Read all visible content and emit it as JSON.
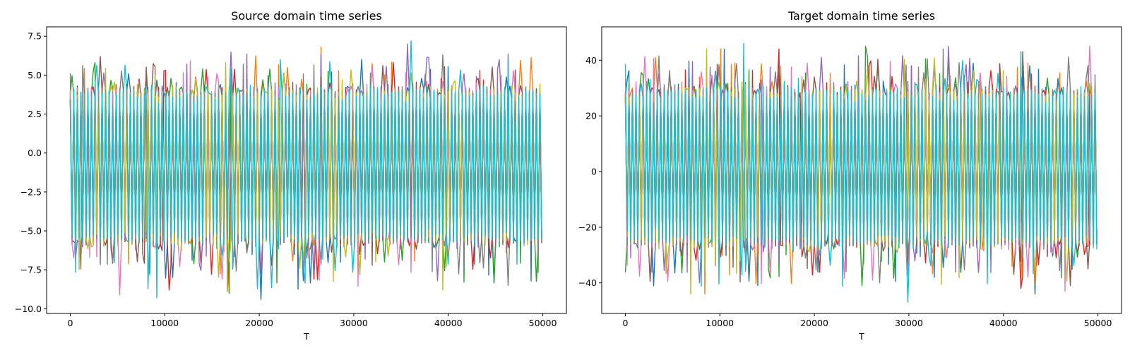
{
  "chart_data": [
    {
      "type": "line",
      "title": "Source domain time series",
      "xlabel": "T",
      "ylabel": "",
      "xlim": [
        -2500,
        52500
      ],
      "ylim": [
        -10.3,
        8.1
      ],
      "xticks": [
        0,
        10000,
        20000,
        30000,
        40000,
        50000
      ],
      "yticks": [
        -10.0,
        -7.5,
        -5.0,
        -2.5,
        0.0,
        2.5,
        5.0,
        7.5
      ],
      "ytick_labels": [
        "−10.0",
        "−7.5",
        "−5.0",
        "−2.5",
        "0.0",
        "2.5",
        "5.0",
        "7.5"
      ],
      "grid": false,
      "n_points": 50000,
      "series_count": 10,
      "series_colors": [
        "#1f77b4",
        "#ff7f0e",
        "#2ca02c",
        "#d62728",
        "#9467bd",
        "#8c564b",
        "#e377c2",
        "#7f7f7f",
        "#bcbd22",
        "#17becf"
      ],
      "series_summary": {
        "typical_low": -5.5,
        "typical_high": 3.8,
        "series_min": [
          -9.4,
          -8.9,
          -9.0,
          -8.8,
          -8.2,
          -8.0,
          -9.1,
          -8.5,
          -8.8,
          -9.3
        ],
        "series_max": [
          6.0,
          6.8,
          5.8,
          5.8,
          7.0,
          6.2,
          5.9,
          6.3,
          5.8,
          7.2
        ]
      }
    },
    {
      "type": "line",
      "title": "Target domain time series",
      "xlabel": "T",
      "ylabel": "",
      "xlim": [
        -2500,
        52500
      ],
      "ylim": [
        -51,
        52
      ],
      "xticks": [
        0,
        10000,
        20000,
        30000,
        40000,
        50000
      ],
      "yticks": [
        -40,
        -20,
        0,
        20,
        40
      ],
      "ytick_labels": [
        "−40",
        "−20",
        "0",
        "20",
        "40"
      ],
      "grid": false,
      "n_points": 50000,
      "series_count": 10,
      "series_colors": [
        "#1f77b4",
        "#ff7f0e",
        "#2ca02c",
        "#d62728",
        "#9467bd",
        "#8c564b",
        "#e377c2",
        "#7f7f7f",
        "#bcbd22",
        "#17becf"
      ],
      "series_summary": {
        "typical_low": -25,
        "typical_high": 28,
        "series_min": [
          -44,
          -44,
          -41,
          -42,
          -40,
          -44,
          -43,
          -40,
          -44,
          -47
        ],
        "series_max": [
          44,
          44,
          45,
          44,
          45,
          43,
          45,
          44,
          44,
          46
        ]
      }
    }
  ]
}
